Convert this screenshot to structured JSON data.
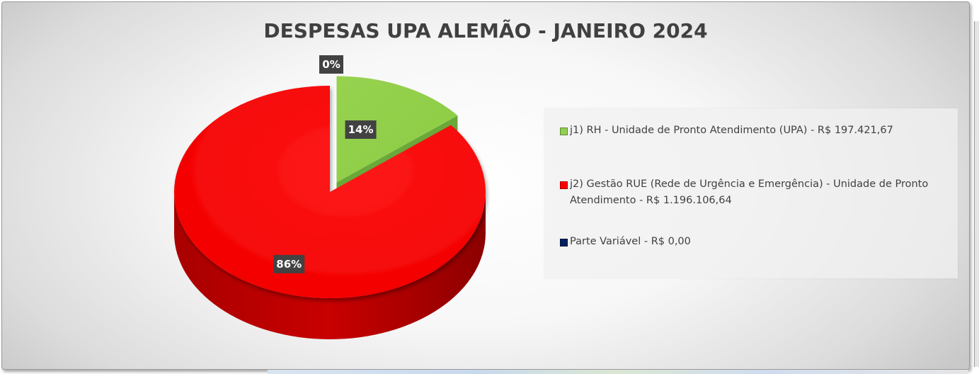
{
  "chart_data": {
    "type": "pie",
    "title": "DESPESAS UPA ALEMÃO - JANEIRO 2024",
    "legend_position": "right",
    "slices": [
      {
        "legend_label": "j1) RH - Unidade de Pronto Atendimento (UPA) - R$ 197.421,67",
        "value": 197421.67,
        "percent_label": "14%",
        "color": "#92d050",
        "exploded": true
      },
      {
        "legend_label": "j2) Gestão RUE (Rede de Urgência e Emergência) - Unidade de Pronto Atendimento - R$ 1.196.106,64",
        "value": 1196106.64,
        "percent_label": "86%",
        "color": "#ff0000",
        "exploded": false
      },
      {
        "legend_label": "Parte Variável - R$ 0,00",
        "value": 0.0,
        "percent_label": "0%",
        "color": "#002060",
        "exploded": true
      }
    ]
  }
}
